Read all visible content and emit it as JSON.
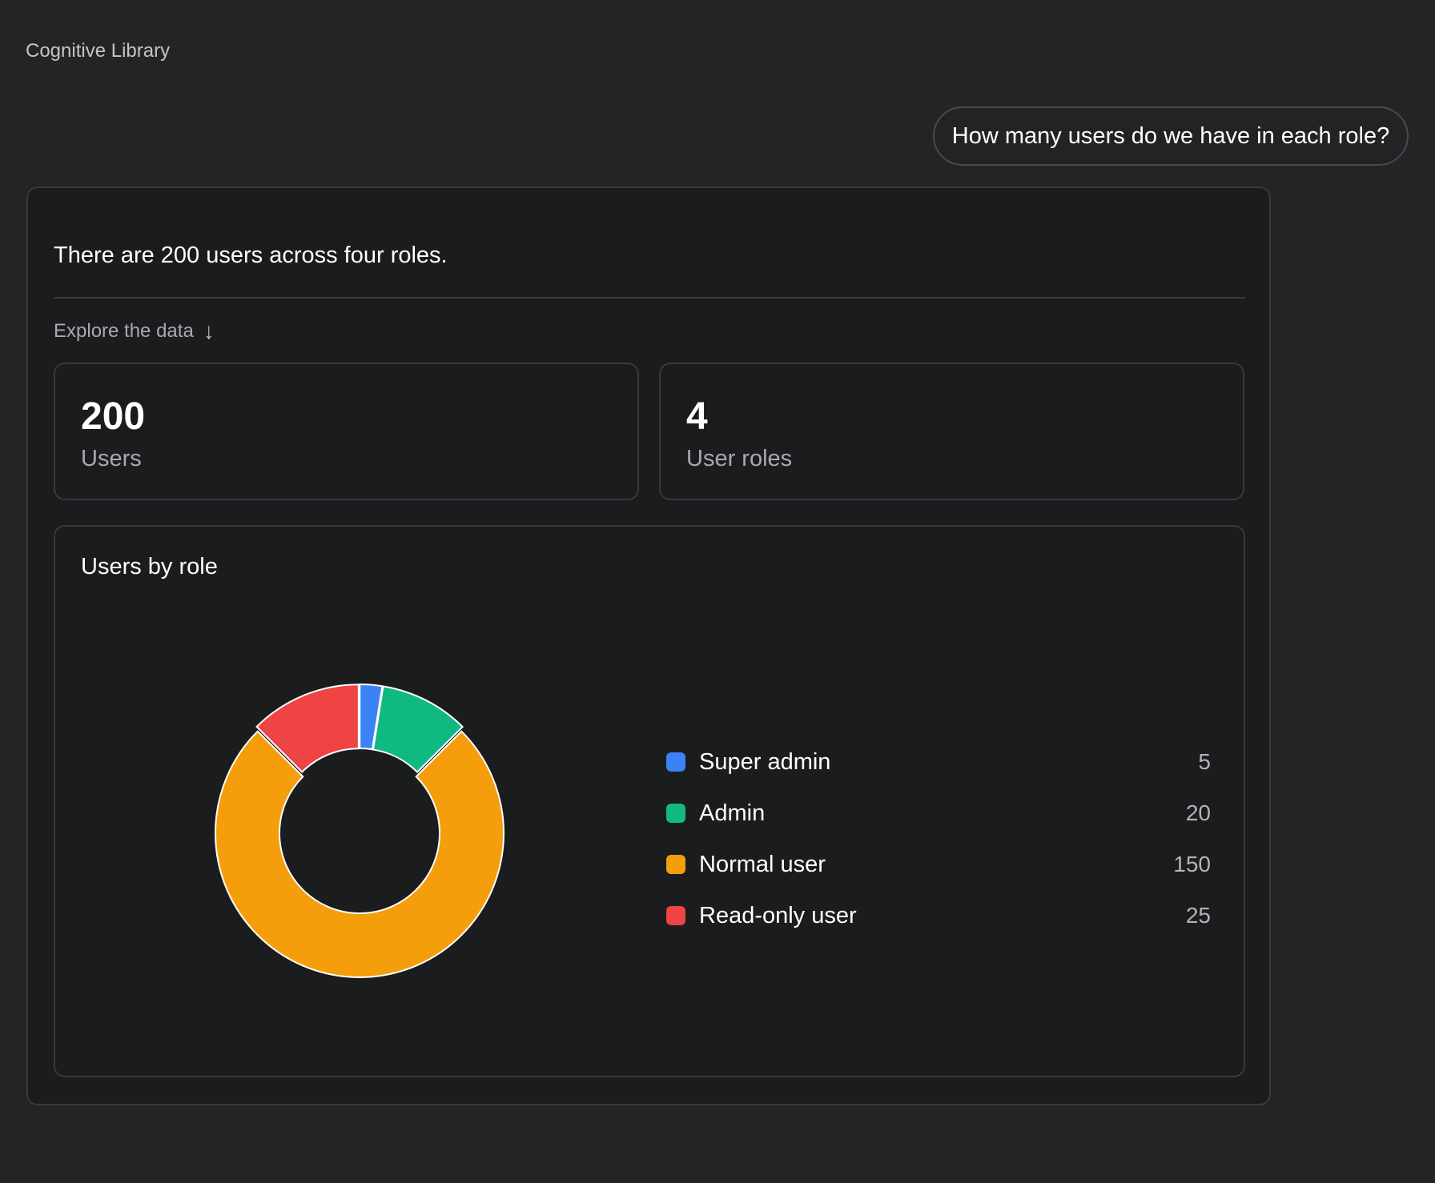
{
  "app": {
    "title": "Cognitive Library"
  },
  "user_message": "How many users do we have in each role?",
  "response": {
    "summary": "There are 200 users across four roles.",
    "explore_label": "Explore the data",
    "explore_icon": "arrow-down-icon",
    "stats": [
      {
        "value": "200",
        "label": "Users"
      },
      {
        "value": "4",
        "label": "User roles"
      }
    ]
  },
  "chart_data": {
    "type": "pie",
    "title": "Users by role",
    "donut": true,
    "start_angle_deg": 270,
    "legend_position": "right",
    "categories": [
      "Super admin",
      "Admin",
      "Normal user",
      "Read-only user"
    ],
    "values": [
      5,
      20,
      150,
      25
    ],
    "value_labels": [
      "5",
      "20",
      "150",
      "25"
    ],
    "colors": [
      "#3b82f6",
      "#10b981",
      "#f59e0b",
      "#ef4444"
    ]
  }
}
